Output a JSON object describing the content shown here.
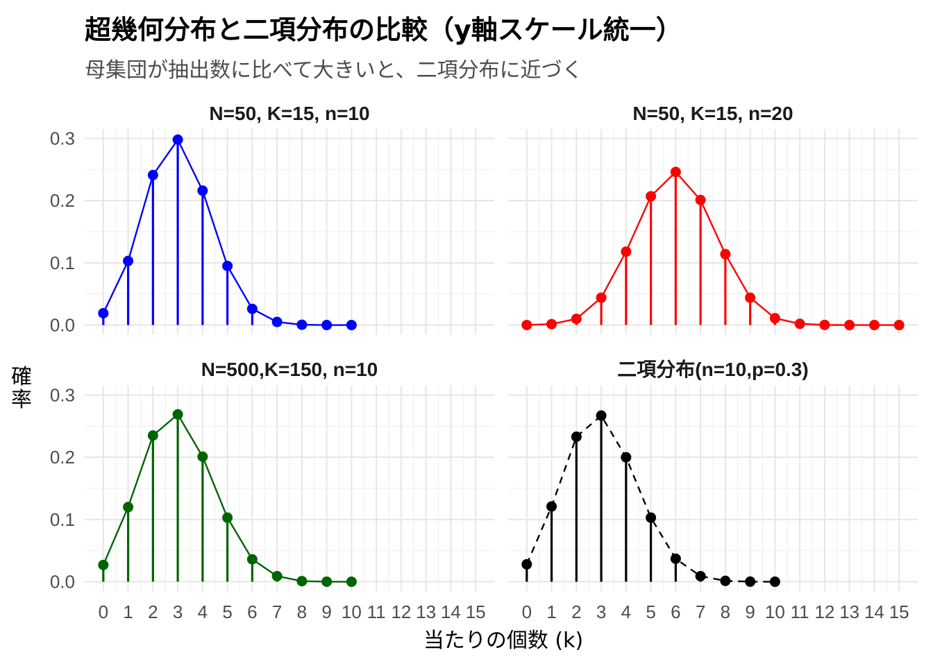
{
  "title": "超幾何分布と二項分布の比較（y軸スケール統一）",
  "subtitle": "母集団が抽出数に比べて大きいと、二項分布に近づく",
  "chart_data": {
    "type": "line",
    "xlabel": "当たりの個数 (k)",
    "ylabel": "確率",
    "xlim": [
      0,
      15
    ],
    "ylim": [
      0,
      0.3
    ],
    "x_ticks": [
      "0",
      "1",
      "2",
      "3",
      "4",
      "5",
      "6",
      "7",
      "8",
      "9",
      "10",
      "11",
      "12",
      "13",
      "14",
      "15"
    ],
    "y_ticks": [
      "0.0",
      "0.1",
      "0.2",
      "0.3"
    ],
    "grid": true,
    "panels": [
      {
        "title": "N=50, K=15, n=10",
        "color": "#0000ff",
        "line_style": "solid",
        "x": [
          0,
          1,
          2,
          3,
          4,
          5,
          6,
          7,
          8,
          9,
          10
        ],
        "values": [
          0.019,
          0.103,
          0.241,
          0.298,
          0.216,
          0.095,
          0.026,
          0.005,
          0.0005,
          3e-05,
          6e-07
        ]
      },
      {
        "title": "N=50, K=15, n=20",
        "color": "#ff0000",
        "line_style": "solid",
        "x": [
          0,
          1,
          2,
          3,
          4,
          5,
          6,
          7,
          8,
          9,
          10,
          11,
          12,
          13,
          14,
          15
        ],
        "values": [
          0.0001,
          0.0015,
          0.01,
          0.044,
          0.118,
          0.207,
          0.246,
          0.201,
          0.114,
          0.044,
          0.011,
          0.002,
          0.0002,
          1e-05,
          4e-07,
          5e-09
        ]
      },
      {
        "title": "N=500,K=150, n=10",
        "color": "#006400",
        "line_style": "solid",
        "x": [
          0,
          1,
          2,
          3,
          4,
          5,
          6,
          7,
          8,
          9,
          10
        ],
        "values": [
          0.027,
          0.12,
          0.235,
          0.269,
          0.201,
          0.103,
          0.036,
          0.009,
          0.001,
          0.0001,
          4e-06
        ]
      },
      {
        "title": "二項分布(n=10,p=0.3)",
        "color": "#000000",
        "line_style": "dashed",
        "x": [
          0,
          1,
          2,
          3,
          4,
          5,
          6,
          7,
          8,
          9,
          10
        ],
        "values": [
          0.028,
          0.121,
          0.233,
          0.267,
          0.2,
          0.103,
          0.037,
          0.009,
          0.0014,
          0.00014,
          6e-06
        ]
      }
    ]
  }
}
